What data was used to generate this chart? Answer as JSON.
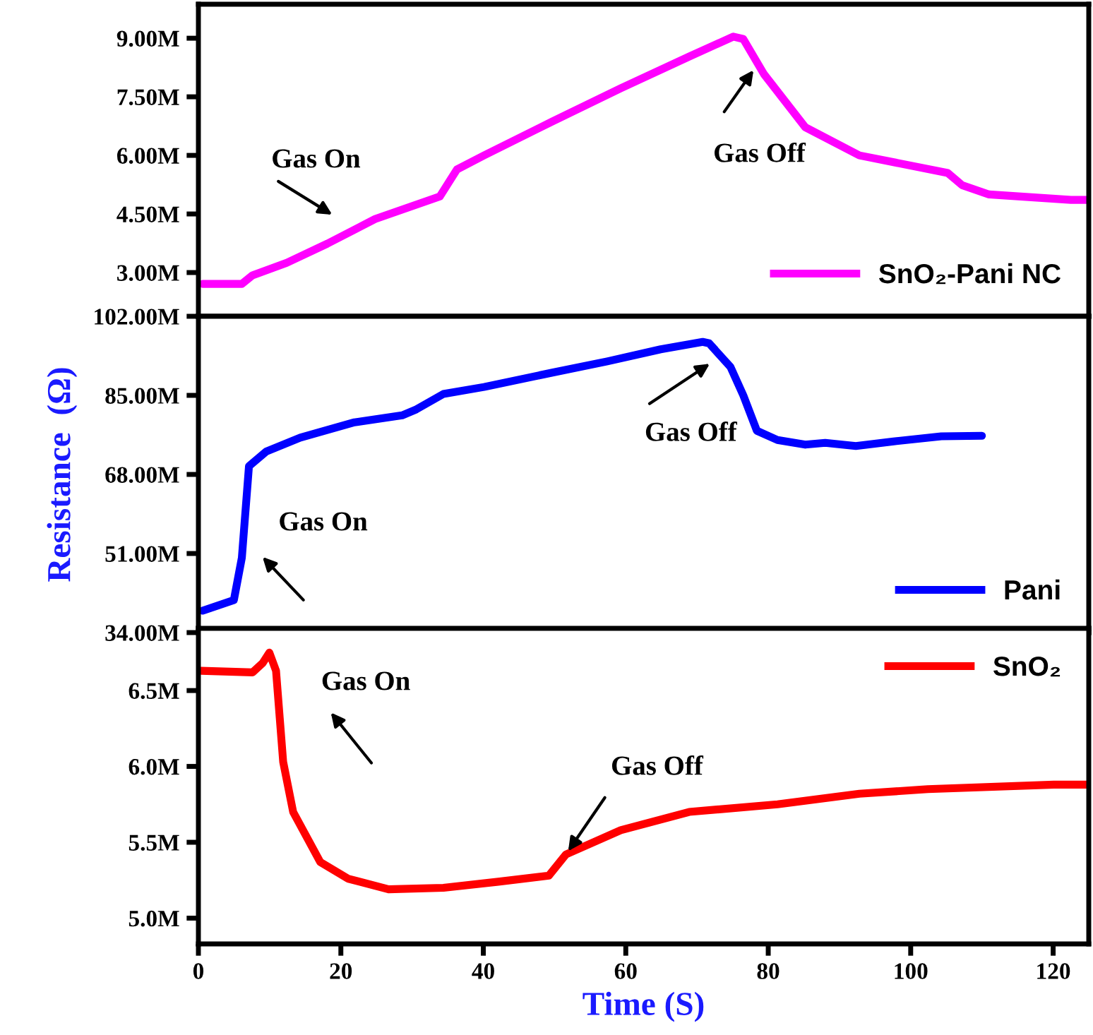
{
  "chart_data": [
    {
      "type": "line",
      "xlim": [
        0,
        125
      ],
      "ylim": [
        1.88,
        9.87
      ],
      "tick_labels": "y",
      "legend": "lower right",
      "yticks": [
        {
          "value": 3,
          "label": "3.00M"
        },
        {
          "value": 4.5,
          "label": "4.50M"
        },
        {
          "value": 6,
          "label": "6.00M"
        },
        {
          "value": 7.5,
          "label": "7.50M"
        },
        {
          "value": 9,
          "label": "9.00M"
        }
      ],
      "series": [
        {
          "name": "SnO₂-Pani NC",
          "color": "#ff00ff",
          "x": [
            0.6,
            6.1,
            7.6,
            12.4,
            18.1,
            24.8,
            33.9,
            36.3,
            40.1,
            49.7,
            59.3,
            68.9,
            75.1,
            76.5,
            79.4,
            85.2,
            92.8,
            105.2,
            107.2,
            111.0,
            122.5,
            124.8
          ],
          "values": [
            2.71,
            2.71,
            2.93,
            3.25,
            3.74,
            4.37,
            4.95,
            5.64,
            6.0,
            6.87,
            7.72,
            8.53,
            9.04,
            8.98,
            8.08,
            6.72,
            6.0,
            5.55,
            5.24,
            5.0,
            4.86,
            4.86
          ]
        }
      ],
      "annotations": [
        "Gas On",
        "Gas Off"
      ]
    },
    {
      "type": "line",
      "xlim": [
        0,
        125
      ],
      "ylim": [
        34,
        102
      ],
      "tick_labels": "y",
      "legend": "lower right",
      "ylabel": "Resistance  (Ω)",
      "yticks": [
        {
          "value": 34,
          "label": "34.00M"
        },
        {
          "value": 51,
          "label": "51.00M"
        },
        {
          "value": 68,
          "label": "68.00M"
        },
        {
          "value": 85,
          "label": "85.00M"
        },
        {
          "value": 102,
          "label": "102.00M"
        }
      ],
      "series": [
        {
          "name": "Pani",
          "color": "#0000ff",
          "x": [
            0.6,
            4.98,
            6.1,
            7.1,
            9.5,
            14.3,
            21.9,
            28.6,
            30.6,
            34.4,
            40.1,
            49.7,
            57.4,
            64.9,
            70.8,
            71.7,
            74.7,
            76.5,
            78.4,
            81.3,
            85.2,
            88.0,
            92.3,
            97.6,
            104.3,
            110.0
          ],
          "values": [
            38.7,
            41.0,
            50.1,
            69.8,
            72.9,
            75.9,
            79.2,
            80.7,
            82.0,
            85.3,
            86.8,
            89.9,
            92.3,
            94.9,
            96.5,
            96.2,
            91.1,
            85.0,
            77.4,
            75.4,
            74.4,
            74.8,
            74.1,
            75.1,
            76.2,
            76.3
          ]
        }
      ],
      "annotations": [
        "Gas On",
        "Gas Off"
      ]
    },
    {
      "type": "line",
      "xlim": [
        0,
        125
      ],
      "ylim": [
        4.83,
        6.91
      ],
      "legend": "upper right",
      "xlabel": "Time (S)",
      "xticks": [
        0,
        20,
        40,
        60,
        80,
        100,
        120
      ],
      "yticks": [
        {
          "value": 5.0,
          "label": "5.0M"
        },
        {
          "value": 5.5,
          "label": "5.5M"
        },
        {
          "value": 6.0,
          "label": "6.0M"
        },
        {
          "value": 6.5,
          "label": "6.5M"
        }
      ],
      "series": [
        {
          "name": "SnO₂",
          "color": "#ff0000",
          "x": [
            0.4,
            7.6,
            9.0,
            9.96,
            10.9,
            11.9,
            13.3,
            17.1,
            21.0,
            26.7,
            34.4,
            42.1,
            49.2,
            51.6,
            59.3,
            68.9,
            81.3,
            92.8,
            102.4,
            120.1,
            124.8
          ],
          "values": [
            6.63,
            6.62,
            6.68,
            6.75,
            6.63,
            6.03,
            5.7,
            5.37,
            5.26,
            5.19,
            5.2,
            5.24,
            5.28,
            5.42,
            5.58,
            5.7,
            5.75,
            5.82,
            5.85,
            5.88,
            5.88
          ]
        }
      ],
      "annotations": [
        "Gas On",
        {
          "text": "Gas Off",
          "x": 51.6,
          "y": 5.42
        }
      ]
    }
  ]
}
